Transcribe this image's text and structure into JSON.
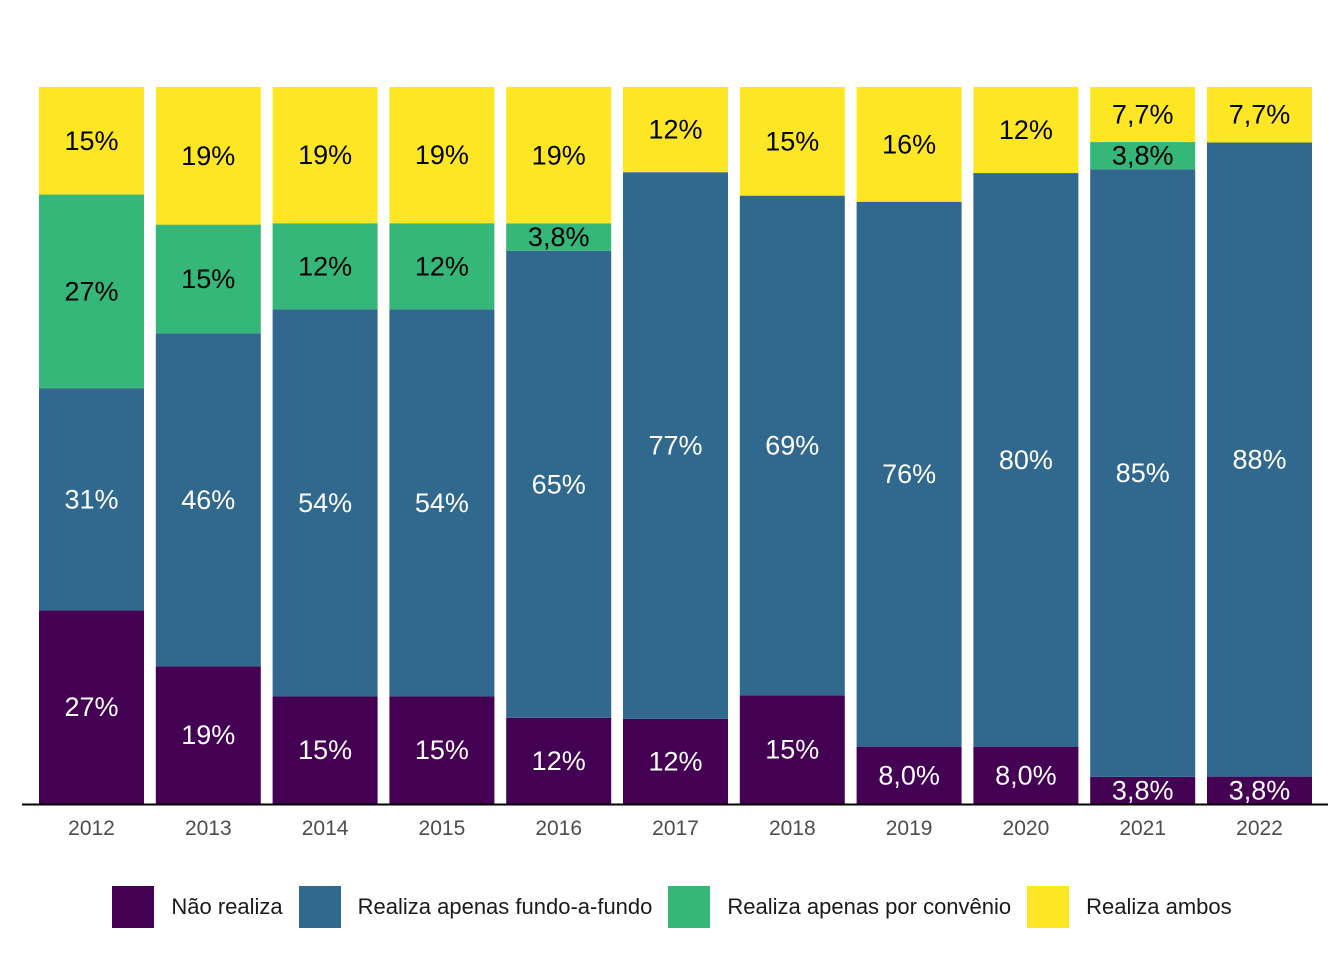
{
  "chart_data": {
    "type": "bar",
    "stacked": true,
    "normalized": true,
    "categories": [
      "2012",
      "2013",
      "2014",
      "2015",
      "2016",
      "2017",
      "2018",
      "2019",
      "2020",
      "2021",
      "2022"
    ],
    "series": [
      {
        "name": "Não realiza",
        "color": "#440154",
        "label_color": "#ffffff",
        "values": [
          27,
          19,
          15,
          15,
          12,
          12,
          15,
          8.0,
          8.0,
          3.8,
          3.8
        ],
        "labels": [
          "27%",
          "19%",
          "15%",
          "15%",
          "12%",
          "12%",
          "15%",
          "8,0%",
          "8,0%",
          "3,8%",
          "3,8%"
        ]
      },
      {
        "name": "Realiza apenas fundo-a-fundo",
        "color": "#31688e",
        "label_color": "#ffffff",
        "values": [
          31,
          46,
          54,
          54,
          65,
          77,
          69,
          76,
          80,
          85,
          88
        ],
        "labels": [
          "31%",
          "46%",
          "54%",
          "54%",
          "65%",
          "77%",
          "69%",
          "76%",
          "80%",
          "85%",
          "88%"
        ]
      },
      {
        "name": "Realiza apenas por convênio",
        "color": "#35b779",
        "label_color": "#000000",
        "values": [
          27,
          15,
          12,
          12,
          3.8,
          0,
          0,
          0,
          0,
          3.8,
          0
        ],
        "labels": [
          "27%",
          "15%",
          "12%",
          "12%",
          "3,8%",
          "",
          "",
          "",
          "",
          "3,8%",
          ""
        ]
      },
      {
        "name": "Realiza ambos",
        "color": "#fde725",
        "label_color": "#000000",
        "values": [
          15,
          19,
          19,
          19,
          19,
          12,
          15,
          16,
          12,
          7.7,
          7.7
        ],
        "labels": [
          "15%",
          "19%",
          "19%",
          "19%",
          "19%",
          "12%",
          "15%",
          "16%",
          "12%",
          "7,7%",
          "7,7%"
        ]
      }
    ],
    "xlabel": "",
    "ylabel": "",
    "ylim": [
      0,
      100
    ],
    "grid": false,
    "legend_position": "bottom"
  }
}
